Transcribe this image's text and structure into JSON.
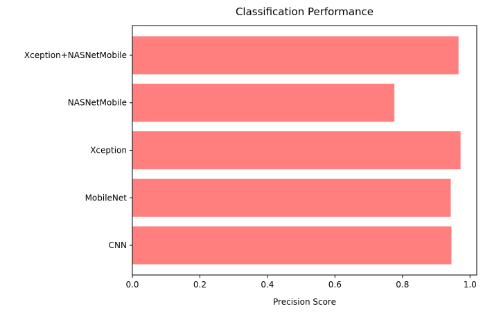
{
  "chart_data": {
    "type": "bar",
    "orientation": "horizontal",
    "title": "Classification Performance",
    "xlabel": "Precision Score",
    "ylabel": "",
    "categories": [
      "CNN",
      "MobileNet",
      "Xception",
      "NASNetMobile",
      "Xception+NASNetMobile"
    ],
    "values": [
      0.945,
      0.943,
      0.972,
      0.776,
      0.966
    ],
    "xlim": [
      0,
      1.02
    ],
    "xticks": [
      0.0,
      0.2,
      0.4,
      0.6,
      0.8,
      1.0
    ],
    "xtick_labels": [
      "0.0",
      "0.2",
      "0.4",
      "0.6",
      "0.8",
      "1.0"
    ],
    "bar_color": "#ff7f7f",
    "grid": false,
    "legend": "none"
  }
}
